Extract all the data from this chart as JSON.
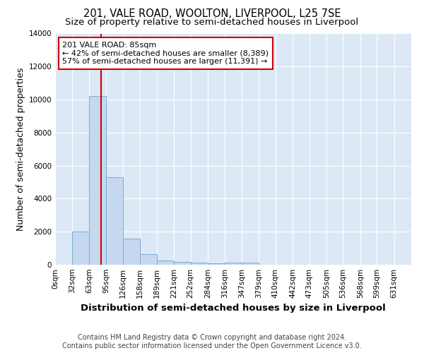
{
  "title": "201, VALE ROAD, WOOLTON, LIVERPOOL, L25 7SE",
  "subtitle": "Size of property relative to semi-detached houses in Liverpool",
  "xlabel": "Distribution of semi-detached houses by size in Liverpool",
  "ylabel": "Number of semi-detached properties",
  "footer_line1": "Contains HM Land Registry data © Crown copyright and database right 2024.",
  "footer_line2": "Contains public sector information licensed under the Open Government Licence v3.0.",
  "bin_labels": [
    "0sqm",
    "32sqm",
    "63sqm",
    "95sqm",
    "126sqm",
    "158sqm",
    "189sqm",
    "221sqm",
    "252sqm",
    "284sqm",
    "316sqm",
    "347sqm",
    "379sqm",
    "410sqm",
    "442sqm",
    "473sqm",
    "505sqm",
    "536sqm",
    "568sqm",
    "599sqm",
    "631sqm"
  ],
  "bin_edges": [
    0,
    32,
    63,
    95,
    126,
    158,
    189,
    221,
    252,
    284,
    316,
    347,
    379,
    410,
    442,
    473,
    505,
    536,
    568,
    599,
    631,
    663
  ],
  "bar_values": [
    0,
    2000,
    10200,
    5300,
    1600,
    650,
    260,
    160,
    130,
    100,
    130,
    130,
    0,
    0,
    0,
    0,
    0,
    0,
    0,
    0,
    0
  ],
  "bar_color": "#c5d8f0",
  "bar_edge_color": "#7aadd4",
  "red_line_x": 85,
  "ylim": [
    0,
    14000
  ],
  "yticks": [
    0,
    2000,
    4000,
    6000,
    8000,
    10000,
    12000,
    14000
  ],
  "annotation_title": "201 VALE ROAD: 85sqm",
  "annotation_line1": "← 42% of semi-detached houses are smaller (8,389)",
  "annotation_line2": "57% of semi-detached houses are larger (11,391) →",
  "annotation_box_color": "#cc0000",
  "title_fontsize": 10.5,
  "subtitle_fontsize": 9.5,
  "axis_label_fontsize": 9,
  "tick_fontsize": 7.5,
  "annotation_fontsize": 8,
  "footer_fontsize": 7
}
